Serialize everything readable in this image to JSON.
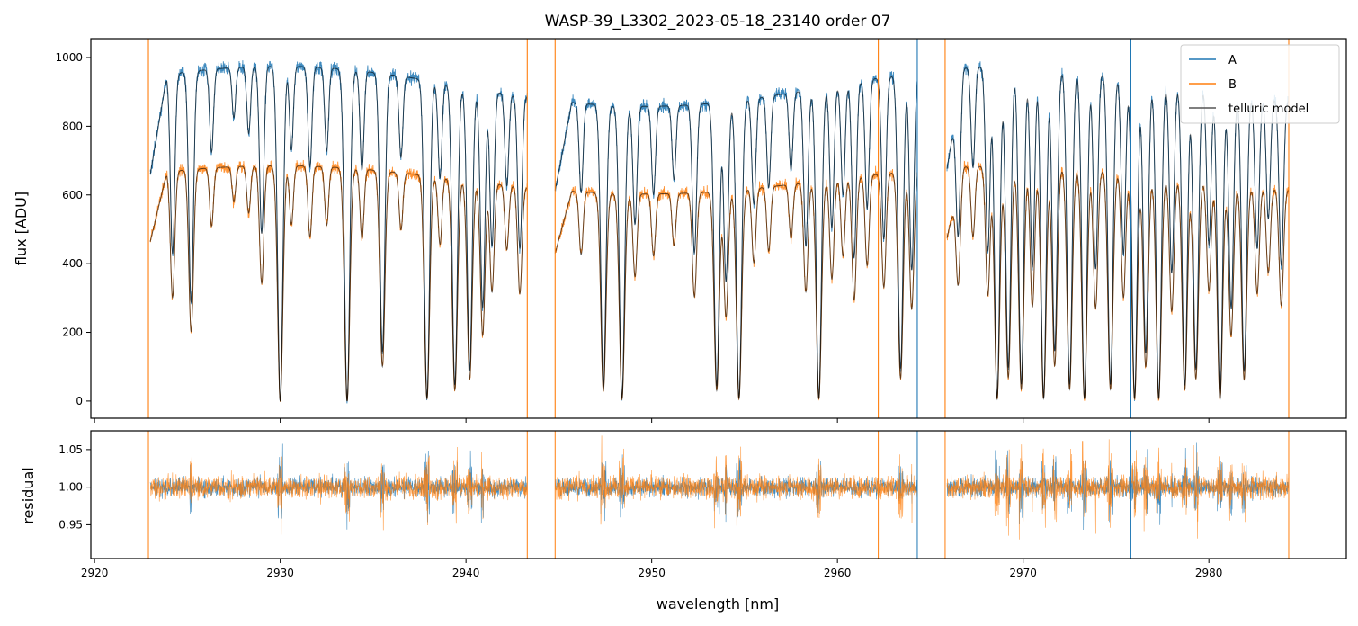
{
  "chart_data": {
    "type": "line",
    "title": "WASP-39_L3302_2023-05-18_23140  order 07",
    "xlabel": "wavelength [nm]",
    "xlim": [
      2919.8,
      2987.4
    ],
    "x_ticks": [
      "2920",
      "2930",
      "2940",
      "2950",
      "2960",
      "2970",
      "2980"
    ],
    "segments_nm": [
      [
        2923.0,
        2943.3
      ],
      [
        2944.8,
        2964.3
      ],
      [
        2965.9,
        2984.3
      ]
    ],
    "top_panel": {
      "ylabel": "flux [ADU]",
      "ylim": [
        -50,
        1055
      ],
      "y_ticks": [
        "0",
        "200",
        "400",
        "600",
        "800",
        "1000"
      ],
      "legend": {
        "position": "top-right",
        "entries": [
          "A",
          "B",
          "telluric model"
        ]
      },
      "series": [
        {
          "name": "A",
          "color": "#1f77b4",
          "continuum_adu": 975
        },
        {
          "name": "B",
          "color": "#ff7f0e",
          "continuum_adu": 685
        },
        {
          "name": "telluric model",
          "color": "#000000"
        }
      ],
      "absorption_lines_nm": [
        [
          2924.2,
          0.55
        ],
        [
          2925.2,
          0.7
        ],
        [
          2926.3,
          0.25
        ],
        [
          2927.5,
          0.15
        ],
        [
          2928.3,
          0.2
        ],
        [
          2929.0,
          0.5
        ],
        [
          2930.0,
          1.0
        ],
        [
          2930.6,
          0.25
        ],
        [
          2931.6,
          0.3
        ],
        [
          2932.5,
          0.25
        ],
        [
          2933.6,
          1.0
        ],
        [
          2934.4,
          0.3
        ],
        [
          2935.5,
          0.85
        ],
        [
          2936.5,
          0.25
        ],
        [
          2937.9,
          0.99
        ],
        [
          2938.6,
          0.3
        ],
        [
          2939.4,
          0.95
        ],
        [
          2940.2,
          0.9
        ],
        [
          2940.9,
          0.7
        ],
        [
          2941.4,
          0.5
        ],
        [
          2942.2,
          0.3
        ],
        [
          2942.9,
          0.5
        ],
        [
          2946.2,
          0.3
        ],
        [
          2947.4,
          0.95
        ],
        [
          2948.4,
          0.99
        ],
        [
          2949.1,
          0.4
        ],
        [
          2950.1,
          0.3
        ],
        [
          2951.2,
          0.25
        ],
        [
          2952.3,
          0.5
        ],
        [
          2953.5,
          0.95
        ],
        [
          2954.0,
          0.6
        ],
        [
          2954.7,
          0.99
        ],
        [
          2955.5,
          0.35
        ],
        [
          2956.3,
          0.3
        ],
        [
          2957.5,
          0.25
        ],
        [
          2958.3,
          0.5
        ],
        [
          2959.0,
          0.99
        ],
        [
          2959.7,
          0.45
        ],
        [
          2960.3,
          0.35
        ],
        [
          2960.9,
          0.55
        ],
        [
          2961.6,
          0.4
        ],
        [
          2962.5,
          0.5
        ],
        [
          2963.4,
          0.9
        ],
        [
          2964.0,
          0.6
        ],
        [
          2966.5,
          0.45
        ],
        [
          2967.3,
          0.3
        ],
        [
          2968.1,
          0.55
        ],
        [
          2968.6,
          0.99
        ],
        [
          2969.2,
          0.9
        ],
        [
          2969.9,
          0.95
        ],
        [
          2970.5,
          0.6
        ],
        [
          2971.1,
          0.99
        ],
        [
          2971.7,
          0.85
        ],
        [
          2972.5,
          0.95
        ],
        [
          2973.3,
          0.99
        ],
        [
          2973.9,
          0.6
        ],
        [
          2974.7,
          0.95
        ],
        [
          2975.4,
          0.55
        ],
        [
          2976.0,
          0.99
        ],
        [
          2976.6,
          0.85
        ],
        [
          2977.3,
          0.99
        ],
        [
          2978.0,
          0.6
        ],
        [
          2978.7,
          0.95
        ],
        [
          2979.3,
          0.9
        ],
        [
          2980.0,
          0.5
        ],
        [
          2980.6,
          0.99
        ],
        [
          2981.2,
          0.7
        ],
        [
          2981.9,
          0.9
        ],
        [
          2982.6,
          0.5
        ],
        [
          2983.2,
          0.4
        ],
        [
          2983.9,
          0.55
        ]
      ],
      "vertical_spikes_nm": [
        {
          "x": 2922.9,
          "series": "B"
        },
        {
          "x": 2943.3,
          "series": "B"
        },
        {
          "x": 2944.8,
          "series": "B"
        },
        {
          "x": 2962.2,
          "series": "B"
        },
        {
          "x": 2964.3,
          "series": "A"
        },
        {
          "x": 2965.8,
          "series": "B"
        },
        {
          "x": 2975.8,
          "series": "A"
        },
        {
          "x": 2984.3,
          "series": "B"
        }
      ]
    },
    "bottom_panel": {
      "ylabel": "residual",
      "ylim": [
        0.905,
        1.075
      ],
      "y_ticks": [
        "0.95",
        "1.00",
        "1.05"
      ],
      "reference_line": 1.0
    }
  }
}
